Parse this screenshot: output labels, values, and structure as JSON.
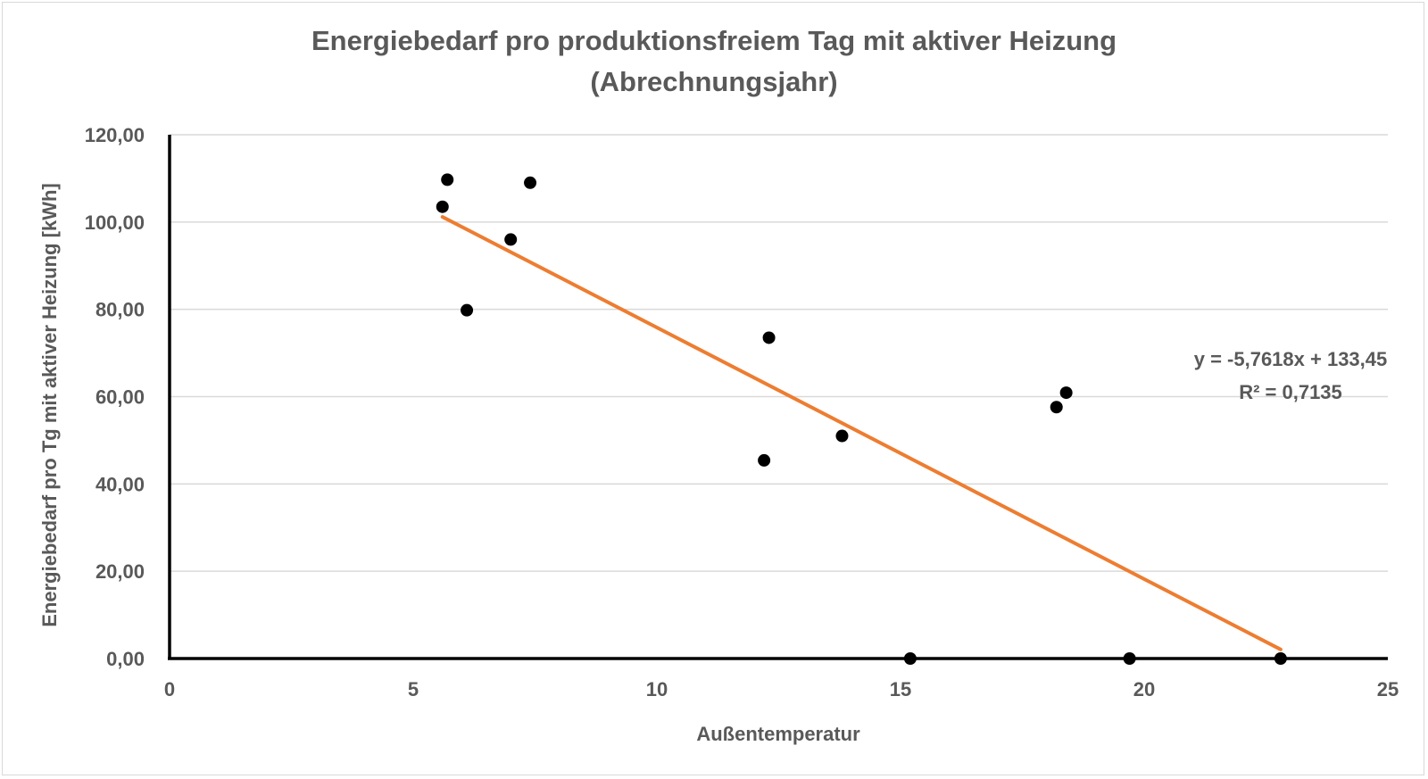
{
  "chart_data": {
    "type": "scatter",
    "title": "Energiebedarf pro produktionsfreiem Tag mit aktiver Heizung (Abrechnungsjahr)",
    "title_lines": [
      "Energiebedarf pro produktionsfreiem Tag mit aktiver Heizung",
      "(Abrechnungsjahr)"
    ],
    "xlabel": "Außentemperatur",
    "ylabel": "Energiebedarf pro Tg mit aktiver Heizung [kWh]",
    "xlim": [
      0,
      25
    ],
    "ylim": [
      0,
      120
    ],
    "x_ticks": [
      "0",
      "5",
      "10",
      "15",
      "20",
      "25"
    ],
    "y_ticks": [
      "0,00",
      "20,00",
      "40,00",
      "60,00",
      "80,00",
      "100,00",
      "120,00"
    ],
    "grid": "horizontal",
    "legend": "none",
    "series": [
      {
        "x": [
          5.6,
          5.7,
          6.1,
          7.0,
          7.4,
          12.2,
          12.3,
          13.8,
          15.2,
          18.2,
          18.4,
          19.7,
          22.8
        ],
        "y": [
          103.5,
          109.7,
          79.8,
          96.0,
          109.0,
          45.4,
          73.5,
          51.0,
          0.0,
          57.6,
          60.9,
          0.0,
          0.0
        ],
        "color": "#000000"
      }
    ],
    "trendline": {
      "type": "linear",
      "slope": -5.7618,
      "intercept": 133.45,
      "x_range": [
        5.6,
        22.8
      ],
      "color": "#ED7D31",
      "equation_label": "y = -5,7618x + 133,45",
      "r2_label": "R² = 0,7135"
    }
  }
}
